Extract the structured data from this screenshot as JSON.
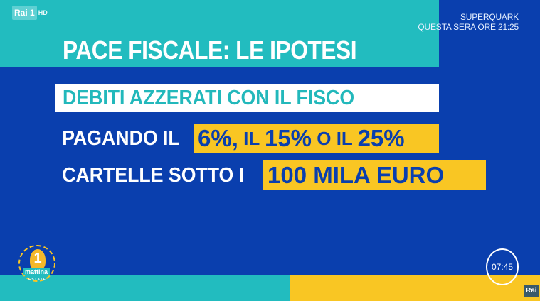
{
  "channel": {
    "logo": "Rai",
    "number": "1",
    "quality": "HD"
  },
  "promo": {
    "line1": "SUPERQUARK",
    "line2": "QUESTA SERA ORE 21:25"
  },
  "headline": "PACE FISCALE: LE IPOTESI",
  "rows": [
    {
      "text": "DEBITI AZZERATI CON IL FISCO"
    },
    {
      "label": "PAGANDO IL",
      "highlight": [
        "6%,",
        " IL ",
        "15%",
        " O IL ",
        "25%"
      ]
    },
    {
      "label": "CARTELLE SOTTO I",
      "highlight": "100 MILA EURO"
    }
  ],
  "show_logo": {
    "number": "1",
    "name": "mattina",
    "sub": "ESTATE"
  },
  "clock": "07:45",
  "corner_logo": "Rai",
  "colors": {
    "blue": "#0a3fae",
    "teal": "#22bcbf",
    "yellow": "#f9c623",
    "white": "#ffffff"
  }
}
